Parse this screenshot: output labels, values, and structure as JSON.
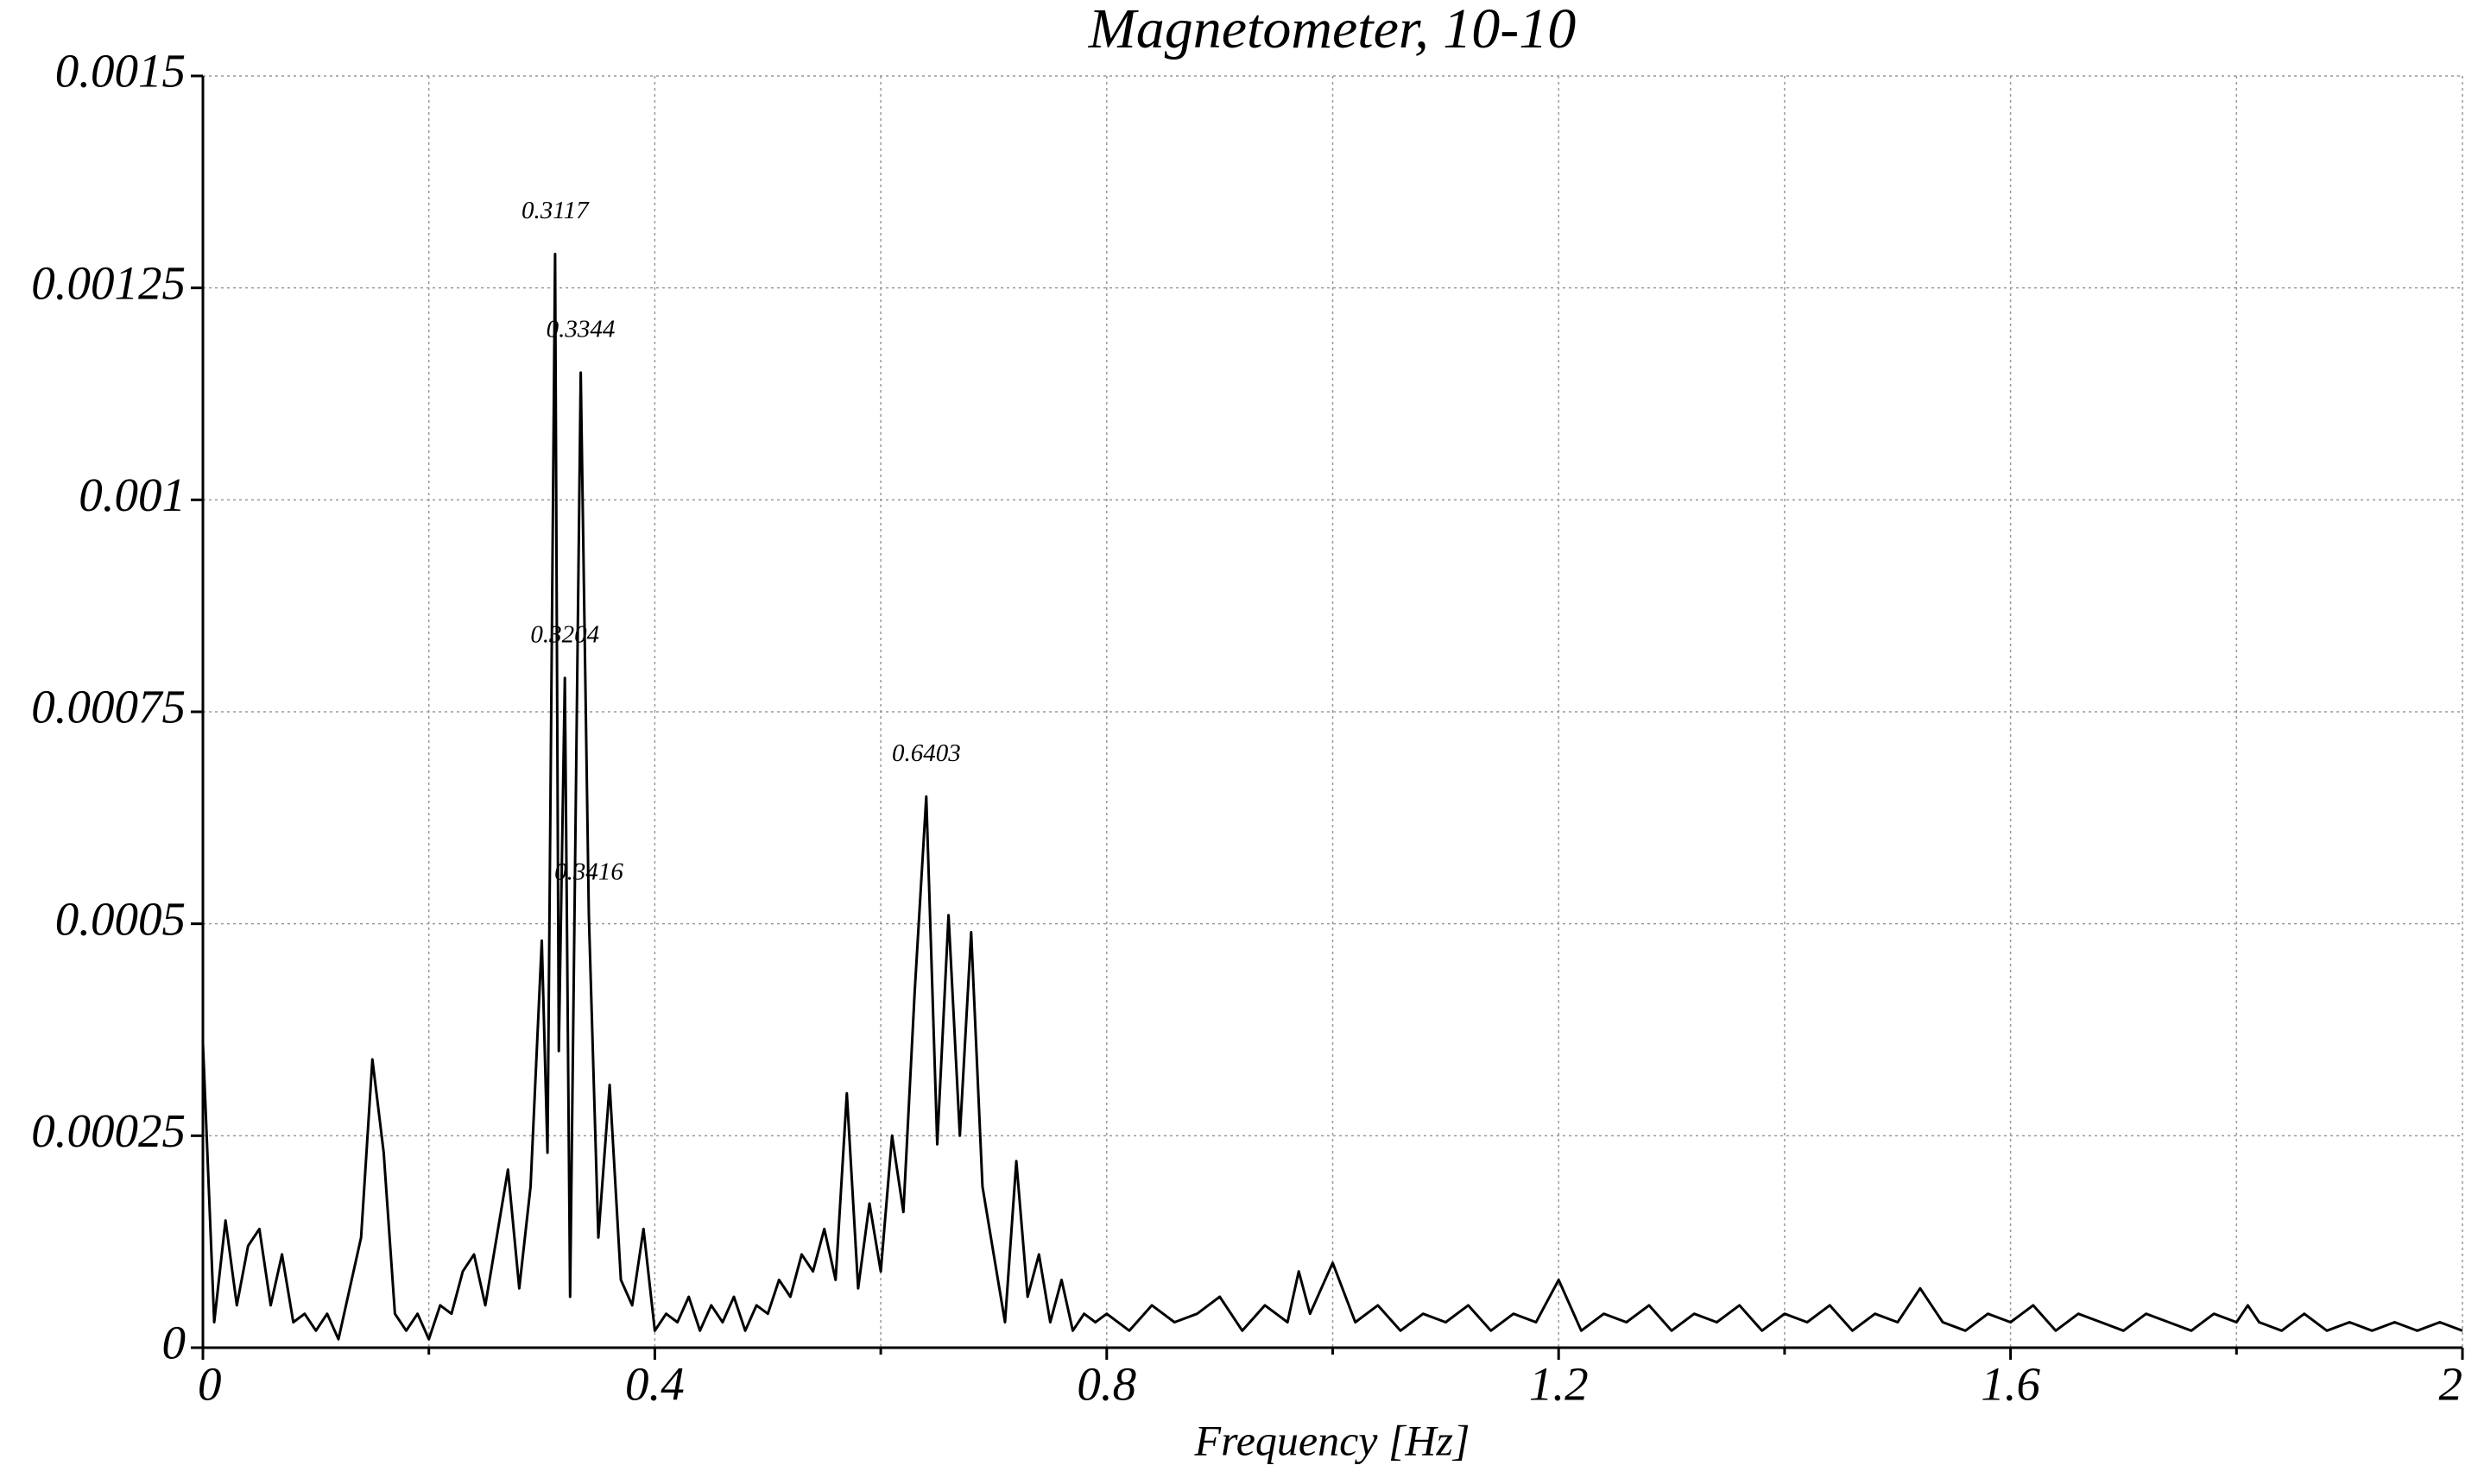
{
  "chart_data": {
    "type": "line",
    "title": "Magnetometer, 10-10",
    "x_label": "Frequency [Hz]",
    "xlim": [
      0,
      2
    ],
    "ylim": [
      0,
      0.0015
    ],
    "xticks": [
      0,
      0.4,
      0.8,
      1.2,
      1.6,
      2
    ],
    "xminor": [
      0.2,
      0.6,
      1,
      1.4,
      1.8
    ],
    "yticks": [
      0,
      0.00025,
      0.0005,
      0.00075,
      0.001,
      0.00125,
      0.0015
    ],
    "grid": true,
    "series": [
      {
        "color": "#000000",
        "x": [
          0,
          0.01,
          0.02,
          0.03,
          0.04,
          0.05,
          0.06,
          0.07,
          0.08,
          0.09,
          0.1,
          0.11,
          0.12,
          0.13,
          0.14,
          0.15,
          0.16,
          0.17,
          0.18,
          0.19,
          0.2,
          0.21,
          0.22,
          0.23,
          0.24,
          0.25,
          0.26,
          0.27,
          0.28,
          0.29,
          0.3,
          0.305,
          0.3117,
          0.315,
          0.3204,
          0.325,
          0.3344,
          0.3416,
          0.35,
          0.36,
          0.37,
          0.38,
          0.39,
          0.4,
          0.41,
          0.42,
          0.43,
          0.44,
          0.45,
          0.46,
          0.47,
          0.48,
          0.49,
          0.5,
          0.51,
          0.52,
          0.53,
          0.54,
          0.55,
          0.56,
          0.57,
          0.58,
          0.59,
          0.6,
          0.61,
          0.62,
          0.63,
          0.6403,
          0.65,
          0.66,
          0.67,
          0.68,
          0.69,
          0.7,
          0.71,
          0.72,
          0.73,
          0.74,
          0.75,
          0.76,
          0.77,
          0.78,
          0.79,
          0.8,
          0.82,
          0.84,
          0.86,
          0.88,
          0.9,
          0.92,
          0.94,
          0.96,
          0.97,
          0.98,
          1,
          1.02,
          1.04,
          1.06,
          1.08,
          1.1,
          1.12,
          1.14,
          1.16,
          1.18,
          1.2,
          1.22,
          1.24,
          1.26,
          1.28,
          1.3,
          1.32,
          1.34,
          1.36,
          1.38,
          1.4,
          1.42,
          1.44,
          1.46,
          1.48,
          1.5,
          1.52,
          1.54,
          1.56,
          1.58,
          1.6,
          1.62,
          1.64,
          1.66,
          1.68,
          1.7,
          1.72,
          1.74,
          1.76,
          1.78,
          1.8,
          1.81,
          1.82,
          1.84,
          1.86,
          1.88,
          1.9,
          1.92,
          1.94,
          1.96,
          1.98,
          2
        ],
        "values": [
          0.00036,
          3e-05,
          0.00015,
          5e-05,
          0.00012,
          0.00014,
          5e-05,
          0.00011,
          3e-05,
          4e-05,
          2e-05,
          4e-05,
          1e-05,
          7e-05,
          0.00013,
          0.00034,
          0.00023,
          4e-05,
          2e-05,
          4e-05,
          1e-05,
          5e-05,
          4e-05,
          9e-05,
          0.00011,
          5e-05,
          0.00013,
          0.00021,
          7e-05,
          0.00019,
          0.00048,
          0.00023,
          0.00129,
          0.00035,
          0.00079,
          6e-05,
          0.00115,
          0.00051,
          0.00013,
          0.00031,
          8e-05,
          5e-05,
          0.00014,
          2e-05,
          4e-05,
          3e-05,
          6e-05,
          2e-05,
          5e-05,
          3e-05,
          6e-05,
          2e-05,
          5e-05,
          4e-05,
          8e-05,
          6e-05,
          0.00011,
          9e-05,
          0.00014,
          8e-05,
          0.0003,
          7e-05,
          0.00017,
          9e-05,
          0.00025,
          0.00016,
          0.00042,
          0.00065,
          0.00024,
          0.00051,
          0.00025,
          0.00049,
          0.00019,
          0.00011,
          3e-05,
          0.00022,
          6e-05,
          0.00011,
          3e-05,
          8e-05,
          2e-05,
          4e-05,
          3e-05,
          4e-05,
          2e-05,
          5e-05,
          3e-05,
          4e-05,
          6e-05,
          2e-05,
          5e-05,
          3e-05,
          9e-05,
          4e-05,
          0.0001,
          3e-05,
          5e-05,
          2e-05,
          4e-05,
          3e-05,
          5e-05,
          2e-05,
          4e-05,
          3e-05,
          8e-05,
          2e-05,
          4e-05,
          3e-05,
          5e-05,
          2e-05,
          4e-05,
          3e-05,
          5e-05,
          2e-05,
          4e-05,
          3e-05,
          5e-05,
          2e-05,
          4e-05,
          3e-05,
          7e-05,
          3e-05,
          2e-05,
          4e-05,
          3e-05,
          5e-05,
          2e-05,
          4e-05,
          3e-05,
          2e-05,
          4e-05,
          3e-05,
          2e-05,
          4e-05,
          3e-05,
          5e-05,
          3e-05,
          2e-05,
          4e-05,
          2e-05,
          3e-05,
          2e-05,
          3e-05,
          2e-05,
          3e-05,
          2e-05
        ]
      }
    ],
    "annotations": [
      {
        "label": "0.3117",
        "x": 0.3117,
        "y": 0.00129
      },
      {
        "label": "0.3344",
        "x": 0.3344,
        "y": 0.00115
      },
      {
        "label": "0.3204",
        "x": 0.3204,
        "y": 0.00079
      },
      {
        "label": "0.3416",
        "x": 0.3416,
        "y": 0.00051
      },
      {
        "label": "0.6403",
        "x": 0.6403,
        "y": 0.00065
      }
    ]
  }
}
